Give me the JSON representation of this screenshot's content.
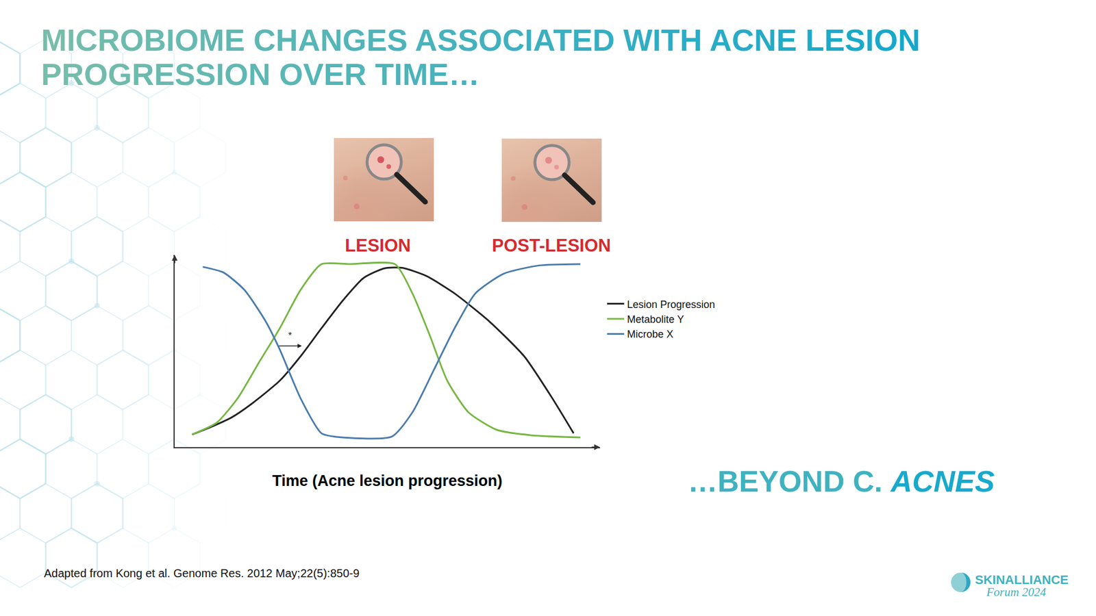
{
  "slide": {
    "title_lines": [
      "MICROBIOME CHANGES ASSOCIATED WITH ACNE LESION",
      "PROGRESSION OVER TIME…"
    ],
    "photo_labels": [
      "LESION",
      "POST-LESION"
    ],
    "tagline": {
      "text": "…BEYOND C. ",
      "italic": "ACNES"
    },
    "source": "Adapted from Kong et al. Genome Res. 2012 May;22(5):850-9",
    "logo": {
      "name": "SKINALLIANCE",
      "sub": "Forum 2024"
    }
  },
  "chart_data": {
    "type": "line",
    "x_label": "Time (Acne lesion progression)",
    "xlim": [
      0,
      100
    ],
    "ylim": [
      0,
      105
    ],
    "tick_labels": false,
    "grid": false,
    "legend": "right",
    "series": [
      {
        "name": "Lesion Progression",
        "color": "#222222",
        "x": [
          4.1,
          8.2,
          13.2,
          18.1,
          24.7,
          29.6,
          34.5,
          39.5,
          44.4,
          49.3,
          53.5,
          59.2,
          65.8,
          74,
          82.2,
          88.8,
          93.8
        ],
        "values": [
          6.9,
          10.7,
          16,
          23.7,
          36.3,
          49.6,
          64.9,
          80,
          92.4,
          97.7,
          98,
          93.5,
          84,
          68.7,
          49.6,
          26.7,
          7.6
        ]
      },
      {
        "name": "Metabolite Y",
        "color": "#76b743",
        "x": [
          4.1,
          9.9,
          14.8,
          19.7,
          24.7,
          29.6,
          34.5,
          41.1,
          51.8,
          55.9,
          60,
          64.1,
          69.1,
          75.7,
          83.9,
          95.4
        ],
        "values": [
          6.9,
          13.4,
          26.7,
          45.8,
          64.9,
          85.9,
          100,
          100,
          100,
          84,
          61,
          36.3,
          19,
          9.5,
          6.5,
          5.3
        ]
      },
      {
        "name": "Microbe X",
        "color": "#4a7cad",
        "x": [
          6.6,
          11.5,
          16.4,
          21.4,
          24.7,
          29.6,
          34.5,
          37.8,
          51,
          55.9,
          60.9,
          65.8,
          70.7,
          77.3,
          85.5,
          95.4
        ],
        "values": [
          98.5,
          95.4,
          85.9,
          68.7,
          53.4,
          26.7,
          7.6,
          5.7,
          5.7,
          19,
          42,
          64.9,
          84,
          94.7,
          99.2,
          100
        ]
      }
    ],
    "annotations": [
      {
        "text": "*",
        "x": 27.1,
        "y": 61,
        "arrow_from": 24.3,
        "arrow_to": 29.9,
        "arrow_y": 55.3
      }
    ]
  }
}
